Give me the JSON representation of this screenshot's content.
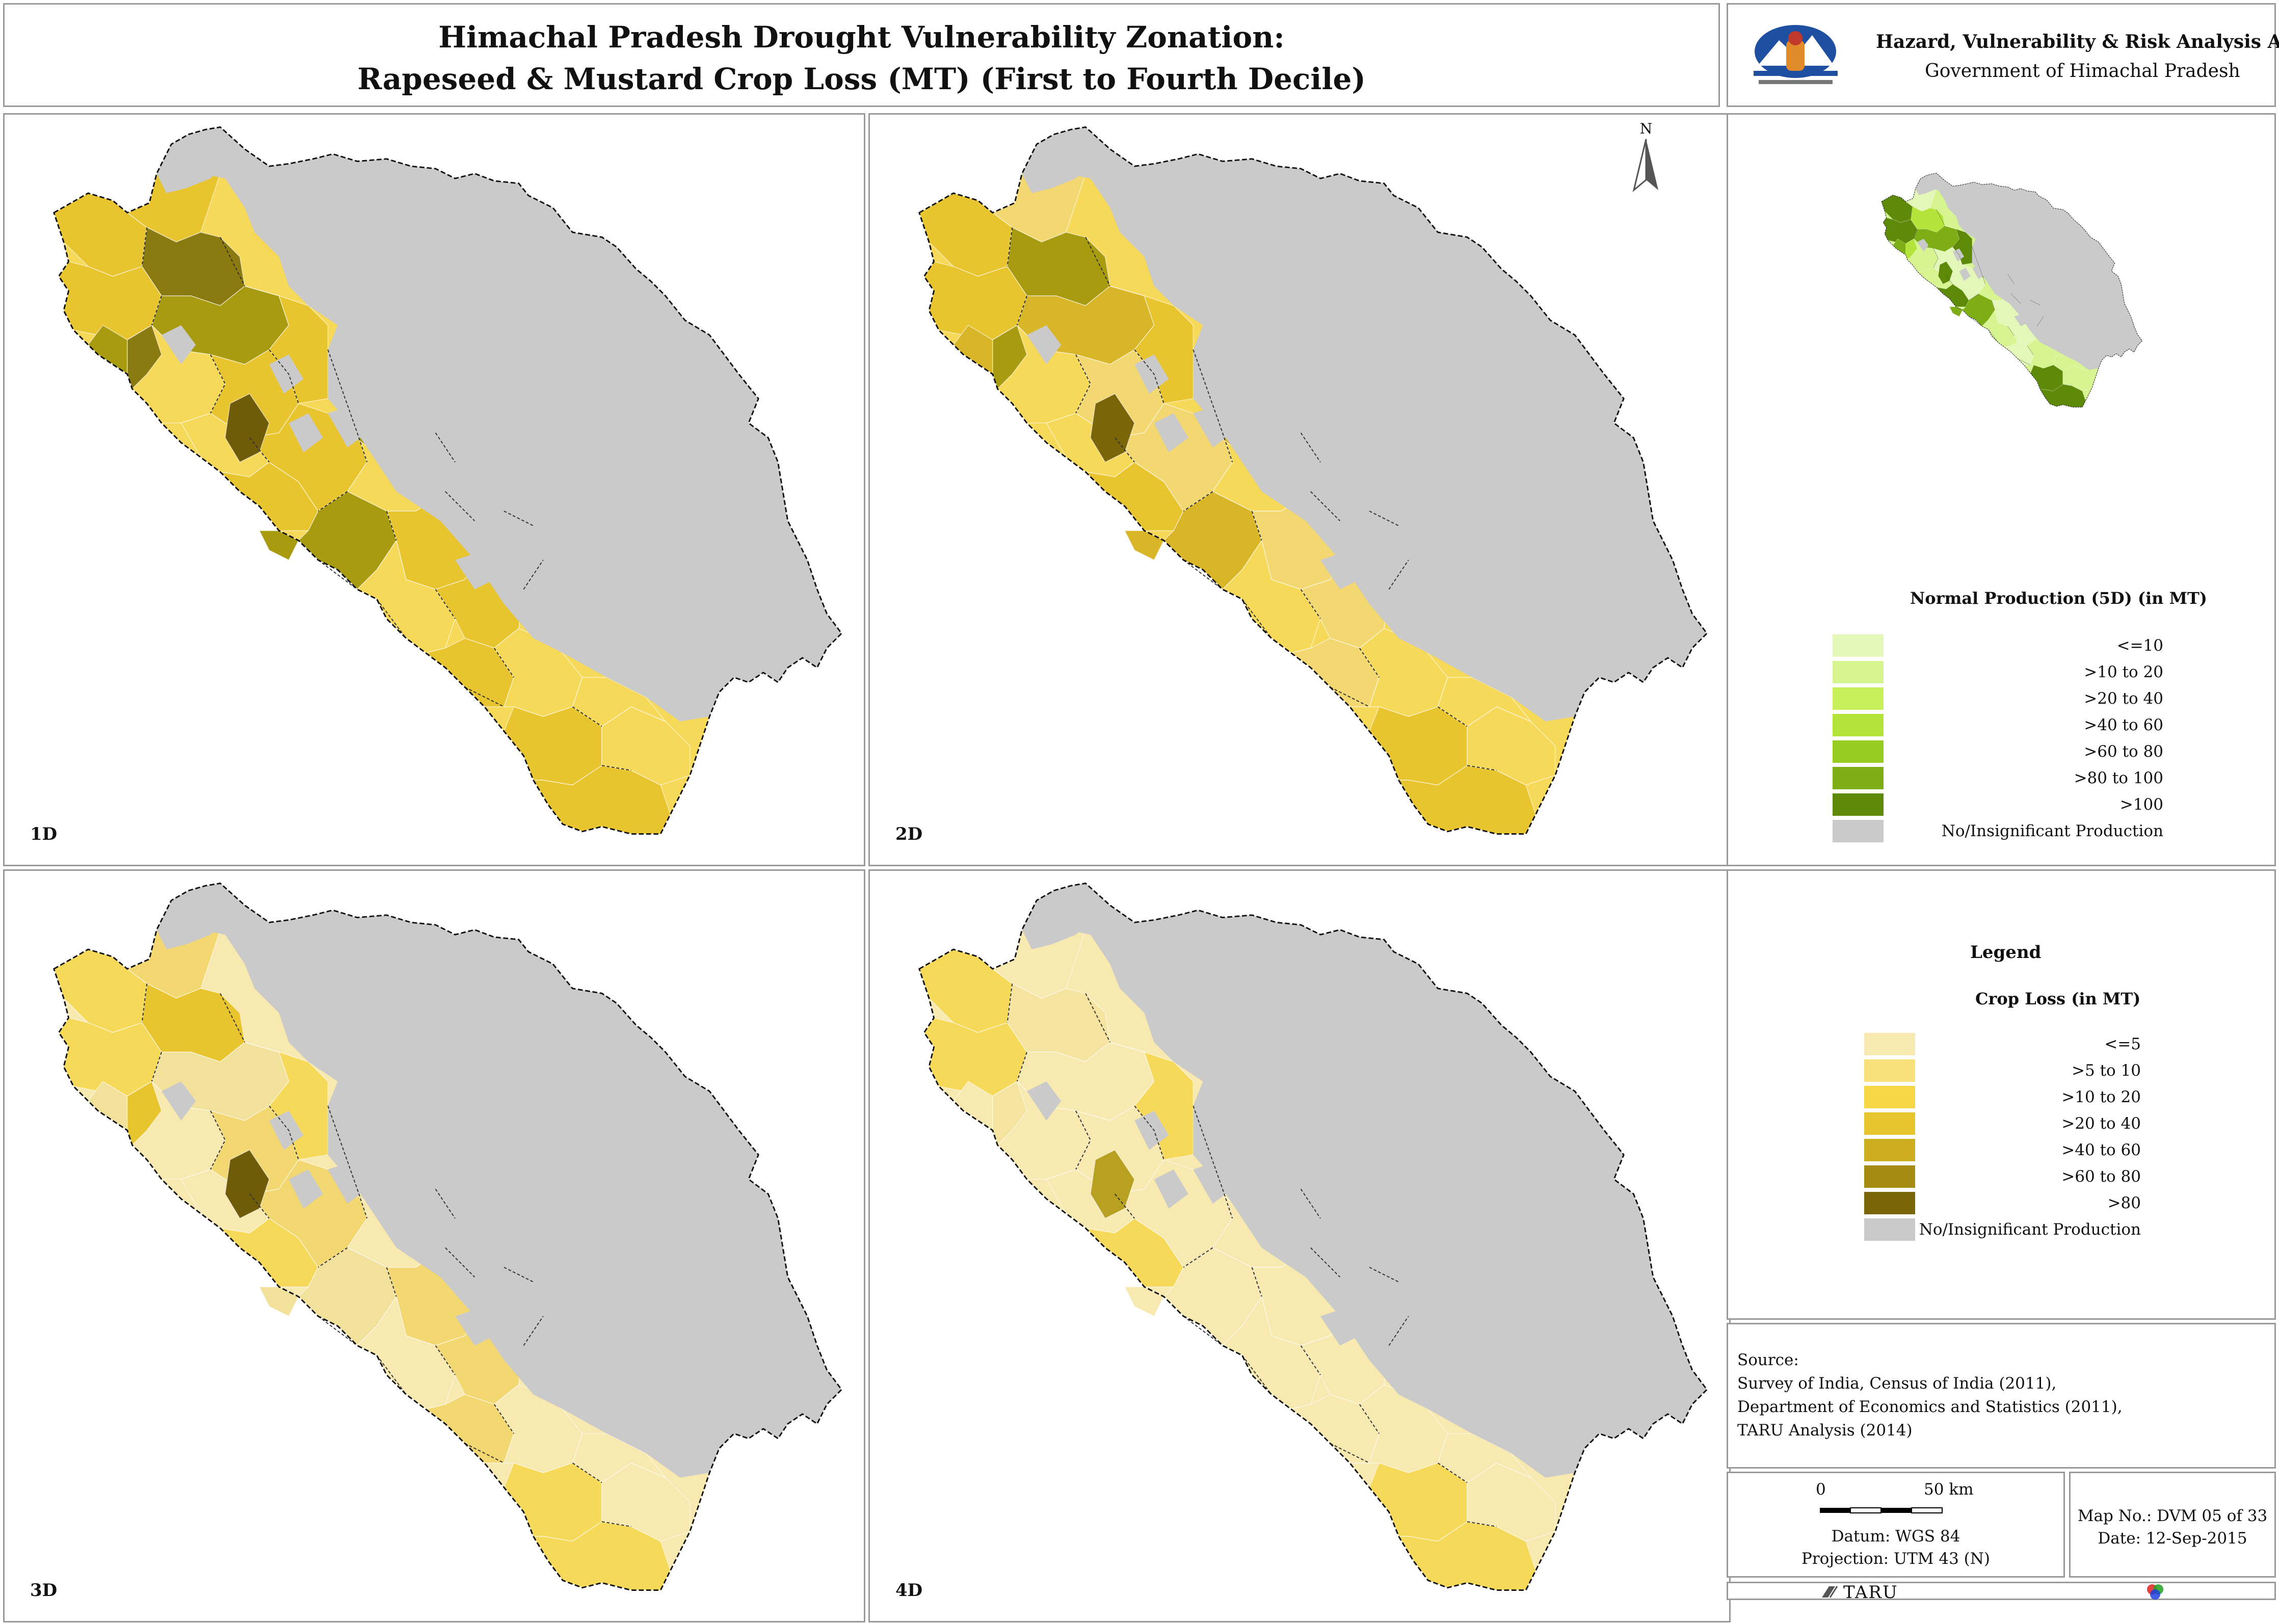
{
  "title": {
    "line1": "Himachal Pradesh Drought Vulnerability Zonation:",
    "line2": "Rapeseed & Mustard Crop Loss (MT) (First to Fourth Decile)"
  },
  "org": {
    "atlas": "Hazard, Vulnerability & Risk Analysis Atlas",
    "government": "Government of Himachal Pradesh"
  },
  "north_label": "N",
  "panels": [
    {
      "label": "1D",
      "fills": [
        "#E8C52E",
        "#A89B10",
        "#8A7A10",
        "#E8C52E",
        "#F7D95A",
        "#6F5B08"
      ]
    },
    {
      "label": "2D",
      "fills": [
        "#E8C52E",
        "#D9B528",
        "#A89B10",
        "#F3D770",
        "#F7D95A",
        "#7A6508"
      ]
    },
    {
      "label": "3D",
      "fills": [
        "#F7D95A",
        "#F1E19A",
        "#E8C52E",
        "#F3D770",
        "#F7E9B0",
        "#6F5B08"
      ]
    },
    {
      "label": "4D",
      "fills": [
        "#F7D95A",
        "#F7E9B0",
        "#F5E4A0",
        "#F7E9B0",
        "#F7E9B0",
        "#B8A020"
      ]
    }
  ],
  "reference_map": {
    "title": "Normal Production (5D) (in MT)",
    "classes": [
      {
        "label": "<=10",
        "color": "#E3F7B8"
      },
      {
        "label": ">10 to 20",
        "color": "#D6F590"
      },
      {
        "label": ">20 to 40",
        "color": "#C6EF5A"
      },
      {
        "label": ">40 to 60",
        "color": "#B4E33A"
      },
      {
        "label": ">60 to 80",
        "color": "#96CC22"
      },
      {
        "label": ">80 to 100",
        "color": "#7EAE16"
      },
      {
        "label": ">100",
        "color": "#5E8A0A"
      },
      {
        "label": "No/Insignificant Production",
        "color": "#CACACA"
      }
    ]
  },
  "legend": {
    "heading": "Legend",
    "subtitle": "Crop Loss (in MT)",
    "classes": [
      {
        "label": "<=5",
        "color": "#F7E9B0"
      },
      {
        "label": ">5 to 10",
        "color": "#F7DF7A"
      },
      {
        "label": ">10 to 20",
        "color": "#F7D745"
      },
      {
        "label": ">20 to 40",
        "color": "#E8C52E"
      },
      {
        "label": ">40 to 60",
        "color": "#CDAE1E"
      },
      {
        "label": ">60 to 80",
        "color": "#A48C12"
      },
      {
        "label": ">80",
        "color": "#7A6508"
      },
      {
        "label": "No/Insignificant Production",
        "color": "#CACACA"
      }
    ]
  },
  "source": {
    "heading": "Source:",
    "lines": [
      "Survey of India, Census of India (2011),",
      "Department of Economics and Statistics (2011),",
      "TARU Analysis (2014)"
    ]
  },
  "scale": {
    "zero": "0",
    "end": "50 km",
    "datum": "Datum: WGS 84",
    "projection": "Projection: UTM 43 (N)"
  },
  "map_info": {
    "map_no": "Map No.: DVM 05 of 33",
    "date": "Date: 12-Sep-2015"
  },
  "footer": {
    "brand": "TARU"
  }
}
